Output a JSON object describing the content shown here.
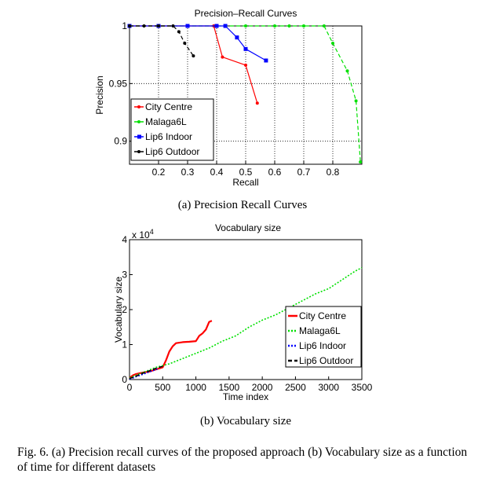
{
  "caption": {
    "sub_a": "(a)  Precision Recall Curves",
    "sub_b": "(b)  Vocabulary size",
    "figure": "Fig. 6.   (a) Precision recall curves of the proposed approach (b) Vocabulary size as a function of time for different datasets"
  },
  "chart_data": [
    {
      "type": "line",
      "title": "Precision–Recall Curves",
      "xlabel": "Recall",
      "ylabel": "Precision",
      "xlim": [
        0.1,
        0.9
      ],
      "ylim": [
        0.88,
        1.0
      ],
      "x_ticks": [
        0.2,
        0.3,
        0.4,
        0.5,
        0.6,
        0.7,
        0.8
      ],
      "x_tick_labels": [
        "0.2",
        "0.3",
        "0.4",
        "0.5",
        "0.6",
        "0.7",
        "0.8"
      ],
      "y_ticks": [
        0.9,
        0.95,
        1.0
      ],
      "y_tick_labels": [
        "0.9",
        "0.95",
        "1"
      ],
      "grid": true,
      "legend_position": "bottom-left",
      "series": [
        {
          "name": "City Centre",
          "color": "#ff0000",
          "marker": "dot",
          "dash": "solid",
          "points": [
            [
              0.1,
              1.0
            ],
            [
              0.2,
              1.0
            ],
            [
              0.3,
              1.0
            ],
            [
              0.39,
              1.0
            ],
            [
              0.42,
              0.973
            ],
            [
              0.5,
              0.966
            ],
            [
              0.54,
              0.933
            ]
          ]
        },
        {
          "name": "Malaga6L",
          "color": "#00e000",
          "marker": "dot",
          "dash": "dashed",
          "points": [
            [
              0.1,
              1.0
            ],
            [
              0.2,
              1.0
            ],
            [
              0.3,
              1.0
            ],
            [
              0.4,
              1.0
            ],
            [
              0.5,
              1.0
            ],
            [
              0.6,
              1.0
            ],
            [
              0.65,
              1.0
            ],
            [
              0.7,
              1.0
            ],
            [
              0.77,
              1.0
            ],
            [
              0.8,
              0.985
            ],
            [
              0.85,
              0.961
            ],
            [
              0.88,
              0.935
            ],
            [
              0.895,
              0.882
            ]
          ]
        },
        {
          "name": "Lip6 Indoor",
          "color": "#0000ff",
          "marker": "square",
          "dash": "solid",
          "points": [
            [
              0.1,
              1.0
            ],
            [
              0.2,
              1.0
            ],
            [
              0.3,
              1.0
            ],
            [
              0.4,
              1.0
            ],
            [
              0.43,
              1.0
            ],
            [
              0.47,
              0.99
            ],
            [
              0.5,
              0.98
            ],
            [
              0.57,
              0.97
            ]
          ]
        },
        {
          "name": "Lip6 Outdoor",
          "color": "#000000",
          "marker": "dot",
          "dash": "dashed",
          "points": [
            [
              0.1,
              1.0
            ],
            [
              0.15,
              1.0
            ],
            [
              0.2,
              1.0
            ],
            [
              0.25,
              1.0
            ],
            [
              0.27,
              0.995
            ],
            [
              0.29,
              0.985
            ],
            [
              0.32,
              0.974
            ]
          ]
        }
      ]
    },
    {
      "type": "line",
      "title": "Vocabulary size",
      "xlabel": "Time index",
      "ylabel": "Vocabulary size",
      "y_exponent_label": "x 10",
      "y_exponent_power": "4",
      "xlim": [
        0,
        3500
      ],
      "ylim": [
        0,
        40000
      ],
      "x_ticks": [
        0,
        500,
        1000,
        1500,
        2000,
        2500,
        3000,
        3500
      ],
      "x_tick_labels": [
        "0",
        "500",
        "1000",
        "1500",
        "2000",
        "2500",
        "3000",
        "3500"
      ],
      "y_ticks": [
        0,
        10000,
        20000,
        30000,
        40000
      ],
      "y_tick_labels": [
        "0",
        "1",
        "2",
        "3",
        "4"
      ],
      "grid": false,
      "legend_position": "center-right",
      "series": [
        {
          "name": "City Centre",
          "color": "#ff0000",
          "dash": "solid",
          "points": [
            [
              0,
              500
            ],
            [
              50,
              1200
            ],
            [
              100,
              1600
            ],
            [
              200,
              2000
            ],
            [
              300,
              2300
            ],
            [
              400,
              2900
            ],
            [
              500,
              3500
            ],
            [
              550,
              5500
            ],
            [
              600,
              8000
            ],
            [
              650,
              9500
            ],
            [
              700,
              10400
            ],
            [
              800,
              10700
            ],
            [
              900,
              10800
            ],
            [
              1000,
              11000
            ],
            [
              1050,
              12500
            ],
            [
              1100,
              13200
            ],
            [
              1150,
              14300
            ],
            [
              1200,
              16500
            ],
            [
              1240,
              16800
            ]
          ]
        },
        {
          "name": "Malaga6L",
          "color": "#00e000",
          "dash": "dotted",
          "points": [
            [
              0,
              500
            ],
            [
              200,
              2000
            ],
            [
              400,
              3500
            ],
            [
              600,
              4500
            ],
            [
              800,
              6000
            ],
            [
              1000,
              7500
            ],
            [
              1200,
              9000
            ],
            [
              1400,
              11000
            ],
            [
              1600,
              12500
            ],
            [
              1800,
              15000
            ],
            [
              2000,
              17000
            ],
            [
              2200,
              18500
            ],
            [
              2400,
              20500
            ],
            [
              2600,
              22500
            ],
            [
              2800,
              24500
            ],
            [
              3000,
              26000
            ],
            [
              3200,
              28500
            ],
            [
              3400,
              31000
            ],
            [
              3500,
              32000
            ]
          ]
        },
        {
          "name": "Lip6 Indoor",
          "color": "#0000ff",
          "dash": "dotted",
          "points": [
            [
              0,
              100
            ],
            [
              100,
              800
            ],
            [
              200,
              1500
            ],
            [
              300,
              2200
            ],
            [
              380,
              2700
            ],
            [
              420,
              3000
            ]
          ]
        },
        {
          "name": "Lip6 Outdoor",
          "color": "#000000",
          "dash": "dashed",
          "points": [
            [
              0,
              300
            ],
            [
              100,
              1000
            ],
            [
              200,
              1800
            ],
            [
              300,
              2500
            ],
            [
              400,
              3200
            ],
            [
              531,
              4000
            ]
          ]
        }
      ]
    }
  ]
}
